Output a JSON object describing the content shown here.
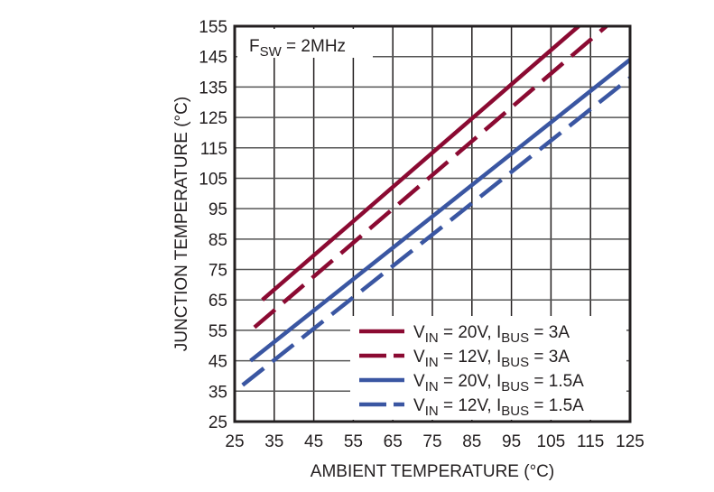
{
  "chart_data": {
    "type": "line",
    "xlabel": "AMBIENT TEMPERATURE (°C)",
    "ylabel": "JUNCTION TEMPERATURE (°C)",
    "xlim": [
      25,
      125
    ],
    "ylim": [
      25,
      155
    ],
    "xticks": [
      25,
      35,
      45,
      55,
      65,
      75,
      85,
      95,
      105,
      115,
      125
    ],
    "yticks": [
      25,
      35,
      45,
      55,
      65,
      75,
      85,
      95,
      105,
      115,
      125,
      135,
      145,
      155
    ],
    "grid": true,
    "annotation": {
      "main": "F",
      "sub": "SW",
      "rest": " = 2MHz"
    },
    "legend_placement": "bottom-right",
    "series": [
      {
        "name": "VIN = 20V, IBUS = 3A",
        "v": "IN",
        "vval": " = 20V, I",
        "i": "BUS",
        "ival": " = 3A",
        "color": "#8b0a32",
        "dashed": false,
        "points": [
          [
            32,
            65
          ],
          [
            112,
            155
          ]
        ]
      },
      {
        "name": "VIN = 12V, IBUS = 3A",
        "v": "IN",
        "vval": " = 12V, I",
        "i": "BUS",
        "ival": " = 3A",
        "color": "#8b0a32",
        "dashed": true,
        "points": [
          [
            30,
            56
          ],
          [
            119,
            155
          ]
        ]
      },
      {
        "name": "VIN = 20V, IBUS = 1.5A",
        "v": "IN",
        "vval": " = 20V, I",
        "i": "BUS",
        "ival": " = 1.5A",
        "color": "#3a56a2",
        "dashed": false,
        "points": [
          [
            29,
            45
          ],
          [
            125,
            144
          ]
        ]
      },
      {
        "name": "VIN = 12V, IBUS = 1.5A",
        "v": "IN",
        "vval": " = 12V, I",
        "i": "BUS",
        "ival": " = 1.5A",
        "color": "#3a56a2",
        "dashed": true,
        "points": [
          [
            27,
            37
          ],
          [
            125,
            138
          ]
        ]
      }
    ]
  }
}
